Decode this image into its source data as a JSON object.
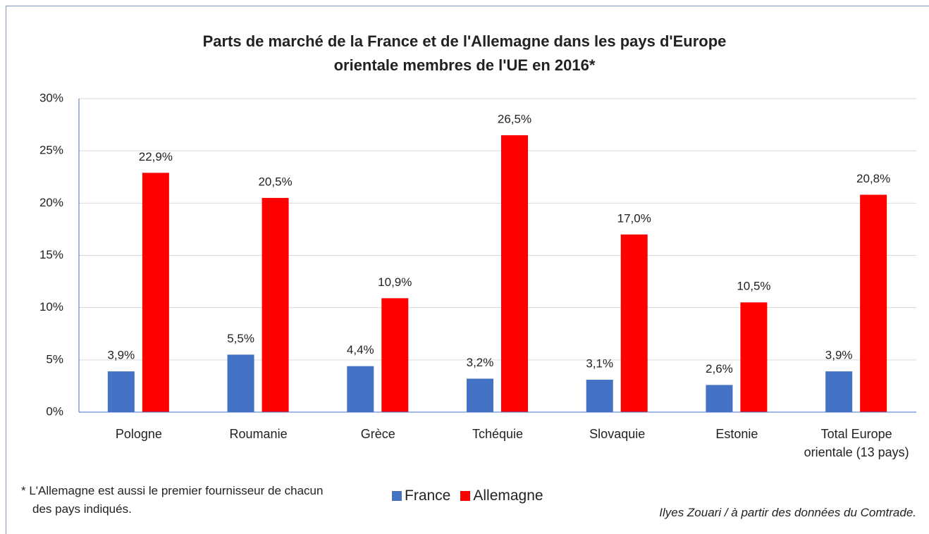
{
  "chart_data": {
    "type": "bar",
    "title": "Parts de marché de la France et de l'Allemagne dans les pays d'Europe orientale membres de l'UE en 2016*",
    "categories": [
      "Pologne",
      "Roumanie",
      "Grèce",
      "Tchéquie",
      "Slovaquie",
      "Estonie",
      "Total Europe orientale (13 pays)"
    ],
    "series": [
      {
        "name": "France",
        "color": "#4472c4",
        "values": [
          3.9,
          5.5,
          4.4,
          3.2,
          3.1,
          2.6,
          3.9
        ],
        "value_labels": [
          "3,9%",
          "5,5%",
          "4,4%",
          "3,2%",
          "3,1%",
          "2,6%",
          "3,9%"
        ]
      },
      {
        "name": "Allemagne",
        "color": "#ff0000",
        "values": [
          22.9,
          20.5,
          10.9,
          26.5,
          17.0,
          10.5,
          20.8
        ],
        "value_labels": [
          "22,9%",
          "20,5%",
          "10,9%",
          "26,5%",
          "17,0%",
          "10,5%",
          "20,8%"
        ]
      }
    ],
    "ylim": [
      0,
      30
    ],
    "yticks": [
      {
        "value": 0,
        "label": "0%"
      },
      {
        "value": 5,
        "label": "5%"
      },
      {
        "value": 10,
        "label": "10%"
      },
      {
        "value": 15,
        "label": "15%"
      },
      {
        "value": 20,
        "label": "20%"
      },
      {
        "value": 25,
        "label": "25%"
      },
      {
        "value": 30,
        "label": "30%"
      }
    ],
    "grid": true,
    "legend": "bottom",
    "footnote": "* L'Allemagne est aussi le premier fournisseur de chacun des pays indiqués.",
    "source": "Ilyes Zouari / à partir des données du Comtrade."
  }
}
